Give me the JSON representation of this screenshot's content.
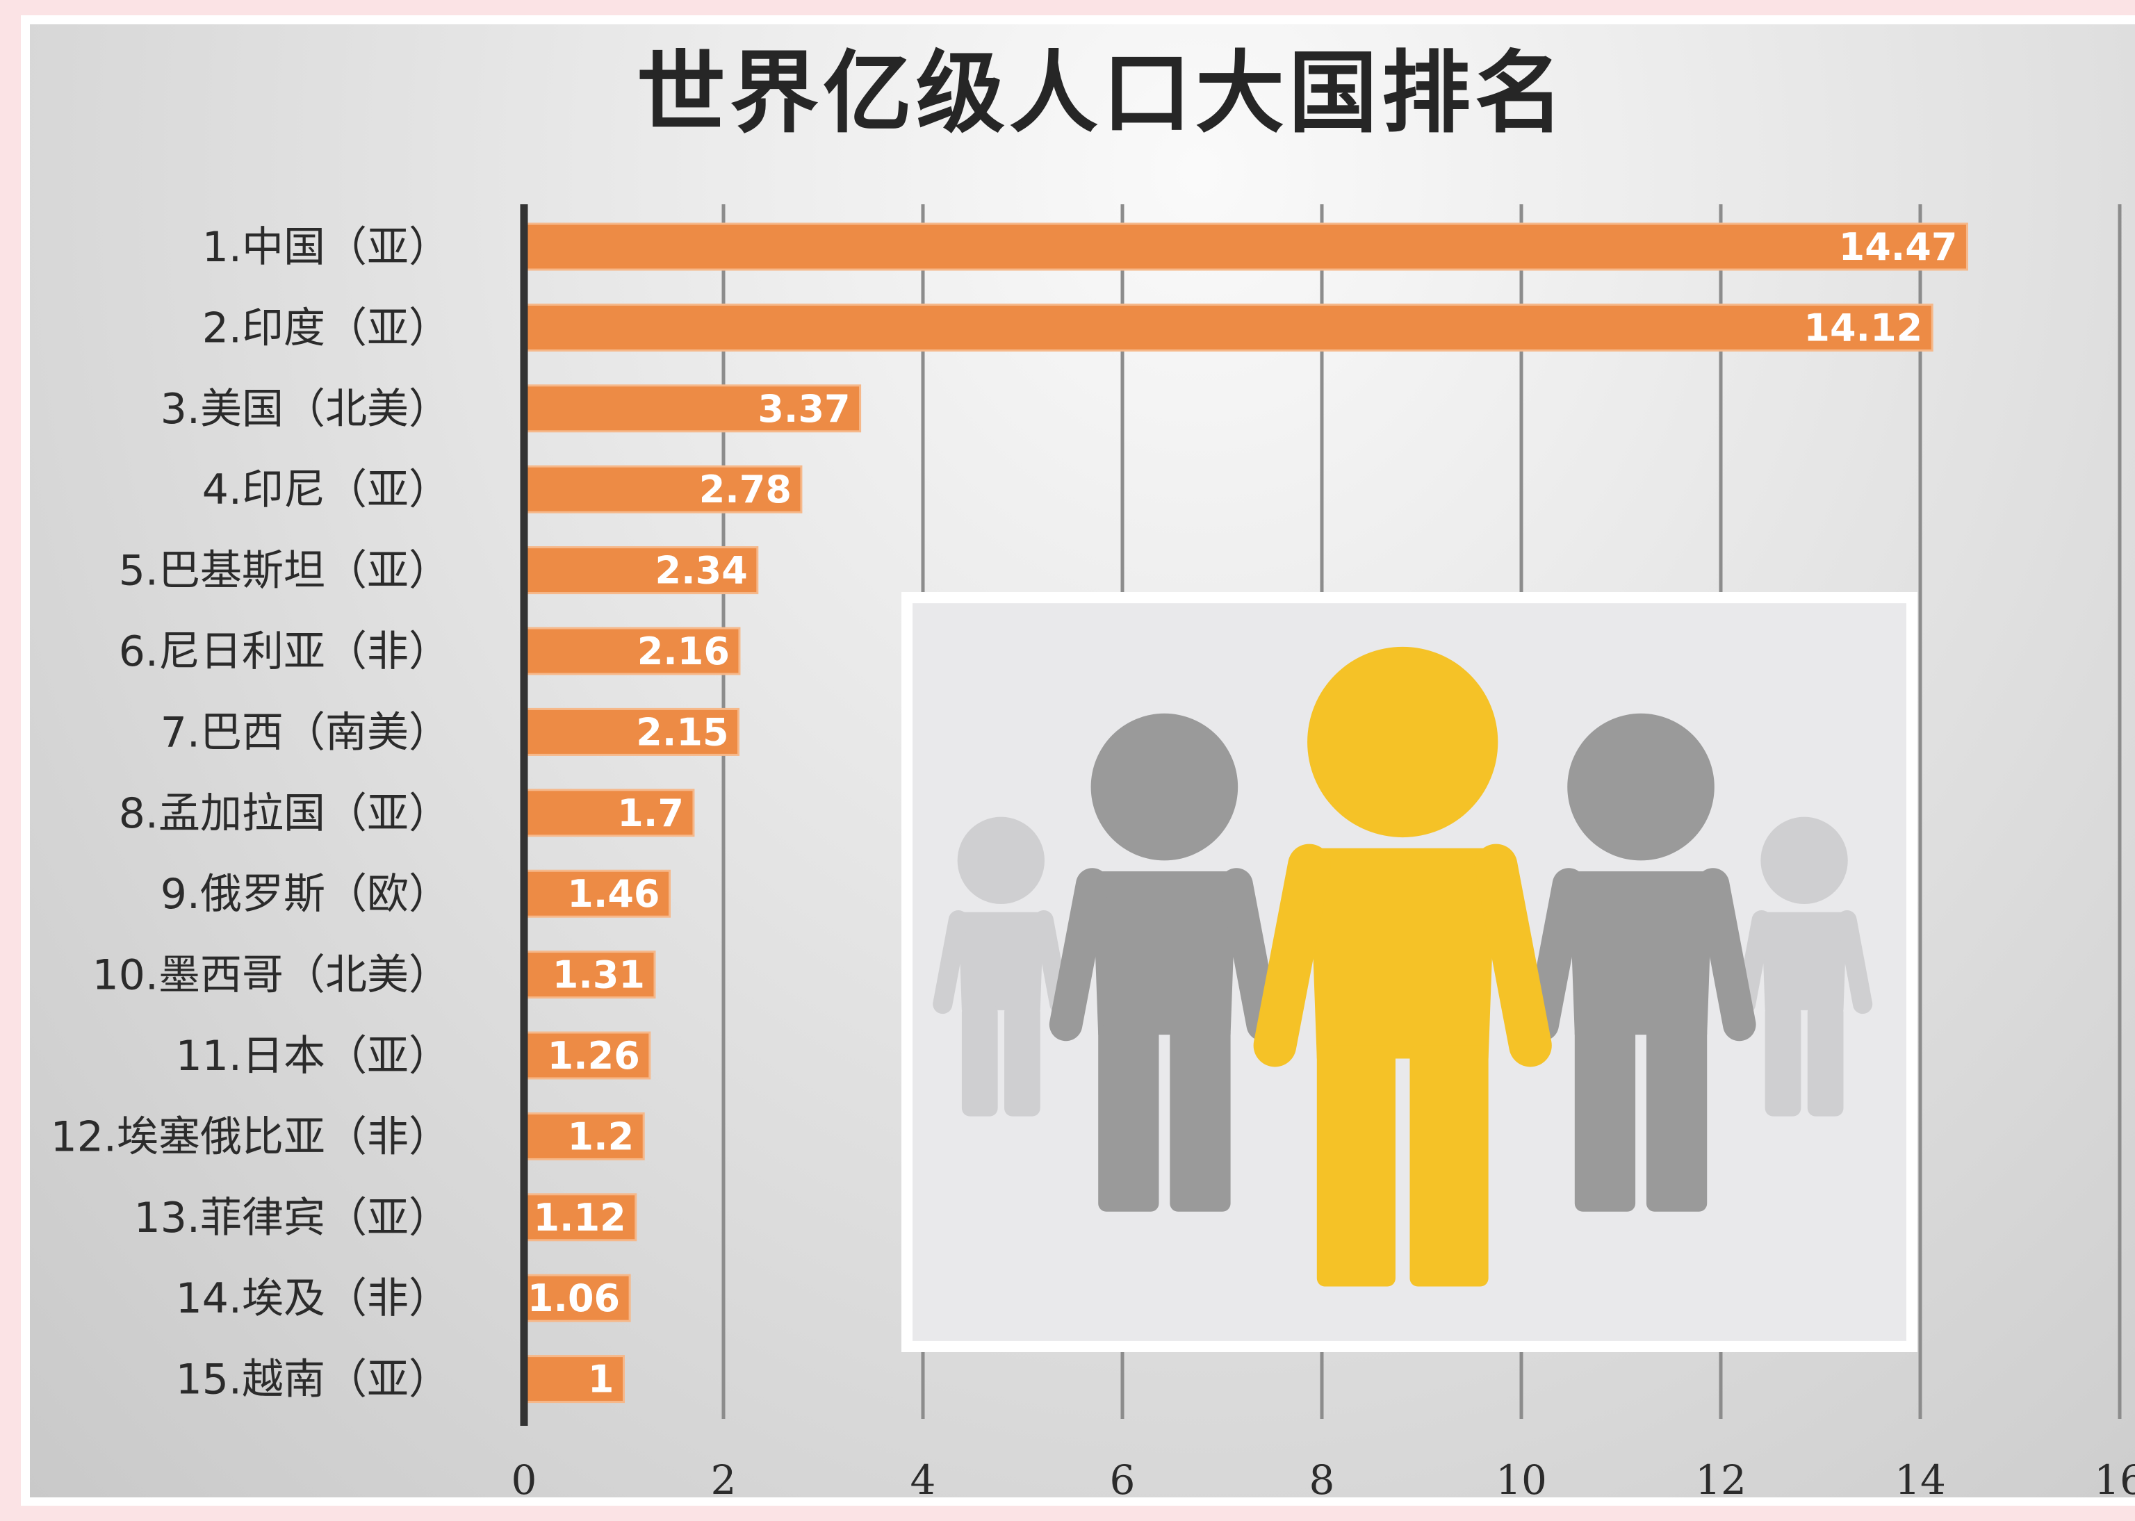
{
  "chart_data": {
    "type": "bar",
    "orientation": "horizontal",
    "title": "世界亿级人口大国排名",
    "categories": [
      "1.中国（亚）",
      "2.印度（亚）",
      "3.美国（北美）",
      "4.印尼（亚）",
      "5.巴基斯坦（亚）",
      "6.尼日利亚（非）",
      "7.巴西（南美）",
      "8.孟加拉国（亚）",
      "9.俄罗斯（欧）",
      "10.墨西哥（北美）",
      "11.日本（亚）",
      "12.埃塞俄比亚（非）",
      "13.菲律宾（亚）",
      "14.埃及（非）",
      "15.越南（亚）"
    ],
    "values": [
      14.47,
      14.12,
      3.37,
      2.78,
      2.34,
      2.16,
      2.15,
      1.7,
      1.46,
      1.31,
      1.26,
      1.2,
      1.12,
      1.06,
      1
    ],
    "value_labels": [
      "14.47",
      "14.12",
      "3.37",
      "2.78",
      "2.34",
      "2.16",
      "2.15",
      "1.7",
      "1.46",
      "1.31",
      "1.26",
      "1.2",
      "1.12",
      "1.06",
      "1"
    ],
    "xlim": [
      0,
      16
    ],
    "x_ticks": [
      "0",
      "2",
      "4",
      "6",
      "8",
      "10",
      "12",
      "14",
      "16"
    ],
    "xlabel": "",
    "ylabel": "",
    "grid": "vertical",
    "bar_color": "#ed8b45",
    "legend": "none"
  },
  "inset_image": {
    "icon": "people-group-icon",
    "highlight_color": "#f5c227",
    "figure_color": "#9a9a9a",
    "faded_color": "#cfcfd1"
  }
}
